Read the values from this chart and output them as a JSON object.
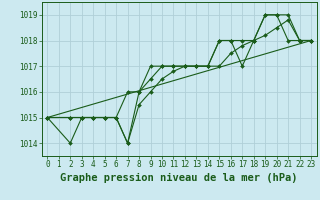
{
  "background_color": "#cce9f0",
  "grid_color": "#b0cfd8",
  "line_color": "#1a5c1a",
  "xlabel": "Graphe pression niveau de la mer (hPa)",
  "ylim": [
    1013.5,
    1019.5
  ],
  "xlim": [
    -0.5,
    23.5
  ],
  "yticks": [
    1014,
    1015,
    1016,
    1017,
    1018,
    1019
  ],
  "xticks": [
    0,
    1,
    2,
    3,
    4,
    5,
    6,
    7,
    8,
    9,
    10,
    11,
    12,
    13,
    14,
    15,
    16,
    17,
    18,
    19,
    20,
    21,
    22,
    23
  ],
  "series": [
    {
      "x": [
        0,
        2,
        3,
        4,
        5,
        6,
        7,
        8,
        9,
        10,
        11,
        12,
        13,
        14,
        15,
        16,
        17,
        18,
        19,
        20,
        21,
        22,
        23
      ],
      "y": [
        1015.0,
        1015.0,
        1015.0,
        1015.0,
        1015.0,
        1015.0,
        1016.0,
        1016.0,
        1017.0,
        1017.0,
        1017.0,
        1017.0,
        1017.0,
        1017.0,
        1018.0,
        1018.0,
        1017.0,
        1018.0,
        1019.0,
        1019.0,
        1018.0,
        1018.0,
        1018.0
      ],
      "marker": "D",
      "markersize": 2.0,
      "with_marker": true
    },
    {
      "x": [
        0,
        2,
        3,
        4,
        5,
        6,
        7,
        8,
        9,
        10,
        11,
        12,
        13,
        14,
        15,
        16,
        17,
        18,
        19,
        20,
        21,
        22,
        23
      ],
      "y": [
        1015.0,
        1015.0,
        1015.0,
        1015.0,
        1015.0,
        1015.0,
        1014.0,
        1015.5,
        1016.0,
        1016.5,
        1016.8,
        1017.0,
        1017.0,
        1017.0,
        1017.0,
        1017.5,
        1017.8,
        1018.0,
        1018.2,
        1018.5,
        1018.8,
        1018.0,
        1018.0
      ],
      "marker": "D",
      "markersize": 2.0,
      "with_marker": true
    },
    {
      "x": [
        0,
        2,
        3,
        4,
        5,
        6,
        7,
        8,
        9,
        10,
        11,
        12,
        13,
        14,
        15,
        16,
        17,
        18,
        19,
        20,
        21,
        22,
        23
      ],
      "y": [
        1015.0,
        1014.0,
        1015.0,
        1015.0,
        1015.0,
        1015.0,
        1014.0,
        1016.0,
        1016.5,
        1017.0,
        1017.0,
        1017.0,
        1017.0,
        1017.0,
        1018.0,
        1018.0,
        1018.0,
        1018.0,
        1019.0,
        1019.0,
        1019.0,
        1018.0,
        1018.0
      ],
      "marker": "D",
      "markersize": 2.0,
      "with_marker": true
    },
    {
      "x": [
        0,
        23
      ],
      "y": [
        1015.0,
        1018.0
      ],
      "marker": null,
      "markersize": 0,
      "with_marker": false
    }
  ],
  "xlabel_fontsize": 7.5,
  "tick_fontsize": 5.5,
  "tick_color": "#1a5c1a",
  "xlabel_color": "#1a5c1a",
  "xlabel_fontweight": "bold"
}
